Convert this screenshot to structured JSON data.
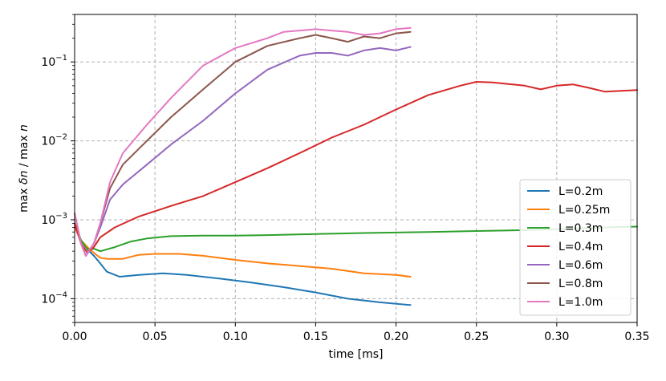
{
  "chart_data": {
    "type": "line",
    "xlabel": "time [ms]",
    "ylabel_parts": [
      "max ",
      "δn",
      " / max ",
      "n"
    ],
    "xlim": [
      0,
      0.35
    ],
    "ylim": [
      5e-05,
      0.4
    ],
    "yscale": "log",
    "grid": true,
    "legend_position": "lower-right",
    "x_ticks": [
      0.0,
      0.05,
      0.1,
      0.15,
      0.2,
      0.25,
      0.3,
      0.35
    ],
    "x_tick_labels": [
      "0.00",
      "0.05",
      "0.10",
      "0.15",
      "0.20",
      "0.25",
      "0.30",
      "0.35"
    ],
    "y_ticks": [
      0.0001,
      0.001,
      0.01,
      0.1
    ],
    "y_tick_labels": [
      {
        "base": "10",
        "exp": "−4"
      },
      {
        "base": "10",
        "exp": "−3"
      },
      {
        "base": "10",
        "exp": "−2"
      },
      {
        "base": "10",
        "exp": "−1"
      }
    ],
    "series": [
      {
        "name": "L=0.2m",
        "color": "#1f77b4",
        "x": [
          0,
          0.004,
          0.008,
          0.012,
          0.016,
          0.02,
          0.028,
          0.04,
          0.055,
          0.07,
          0.09,
          0.11,
          0.13,
          0.15,
          0.17,
          0.19,
          0.209
        ],
        "y": [
          0.0008,
          0.00055,
          0.00042,
          0.00035,
          0.00028,
          0.00022,
          0.00019,
          0.0002,
          0.00021,
          0.0002,
          0.00018,
          0.00016,
          0.00014,
          0.00012,
          0.0001,
          9e-05,
          8.3e-05
        ]
      },
      {
        "name": "L=0.25m",
        "color": "#ff7f0e",
        "x": [
          0,
          0.004,
          0.008,
          0.012,
          0.016,
          0.02,
          0.03,
          0.04,
          0.05,
          0.065,
          0.08,
          0.1,
          0.12,
          0.14,
          0.16,
          0.18,
          0.2,
          0.209
        ],
        "y": [
          0.0008,
          0.00055,
          0.00045,
          0.00038,
          0.00033,
          0.00032,
          0.00032,
          0.00036,
          0.00037,
          0.00037,
          0.00035,
          0.00031,
          0.00028,
          0.00026,
          0.00024,
          0.00021,
          0.0002,
          0.00019
        ]
      },
      {
        "name": "L=0.3m",
        "color": "#2ca02c",
        "x": [
          0,
          0.004,
          0.008,
          0.012,
          0.016,
          0.025,
          0.035,
          0.045,
          0.06,
          0.08,
          0.1,
          0.12,
          0.15,
          0.18,
          0.2,
          0.22,
          0.25,
          0.28,
          0.3,
          0.33,
          0.35
        ],
        "y": [
          0.0009,
          0.00055,
          0.00042,
          0.00043,
          0.0004,
          0.00045,
          0.00053,
          0.00058,
          0.00062,
          0.00063,
          0.00063,
          0.00064,
          0.00066,
          0.00068,
          0.00069,
          0.0007,
          0.00072,
          0.00074,
          0.00076,
          0.0008,
          0.00082
        ]
      },
      {
        "name": "L=0.4m",
        "color": "#d62728",
        "x": [
          0,
          0.004,
          0.008,
          0.012,
          0.016,
          0.025,
          0.04,
          0.06,
          0.08,
          0.1,
          0.12,
          0.14,
          0.16,
          0.18,
          0.2,
          0.22,
          0.24,
          0.25,
          0.26,
          0.28,
          0.29,
          0.3,
          0.31,
          0.32,
          0.33,
          0.35
        ],
        "y": [
          0.0009,
          0.0005,
          0.00038,
          0.00045,
          0.0006,
          0.0008,
          0.0011,
          0.0015,
          0.002,
          0.003,
          0.0045,
          0.007,
          0.011,
          0.016,
          0.025,
          0.038,
          0.05,
          0.056,
          0.055,
          0.05,
          0.045,
          0.05,
          0.052,
          0.047,
          0.042,
          0.044
        ]
      },
      {
        "name": "L=0.6m",
        "color": "#9467bd",
        "x": [
          0,
          0.004,
          0.007,
          0.012,
          0.016,
          0.022,
          0.03,
          0.045,
          0.06,
          0.08,
          0.1,
          0.12,
          0.14,
          0.15,
          0.16,
          0.17,
          0.18,
          0.19,
          0.2,
          0.209
        ],
        "y": [
          0.0012,
          0.0005,
          0.00035,
          0.0005,
          0.0008,
          0.0018,
          0.0028,
          0.005,
          0.009,
          0.018,
          0.04,
          0.08,
          0.12,
          0.13,
          0.13,
          0.12,
          0.14,
          0.15,
          0.14,
          0.155
        ]
      },
      {
        "name": "L=0.8m",
        "color": "#8c564b",
        "x": [
          0,
          0.004,
          0.007,
          0.012,
          0.016,
          0.022,
          0.03,
          0.045,
          0.06,
          0.08,
          0.1,
          0.12,
          0.14,
          0.15,
          0.16,
          0.17,
          0.18,
          0.19,
          0.2,
          0.209
        ],
        "y": [
          0.0012,
          0.0005,
          0.00035,
          0.0005,
          0.0009,
          0.0025,
          0.005,
          0.01,
          0.02,
          0.045,
          0.1,
          0.16,
          0.2,
          0.22,
          0.2,
          0.18,
          0.21,
          0.2,
          0.23,
          0.24
        ]
      },
      {
        "name": "L=1.0m",
        "color": "#e377c2",
        "x": [
          0,
          0.004,
          0.007,
          0.012,
          0.016,
          0.022,
          0.03,
          0.045,
          0.06,
          0.08,
          0.1,
          0.12,
          0.13,
          0.15,
          0.16,
          0.17,
          0.18,
          0.19,
          0.2,
          0.209
        ],
        "y": [
          0.0012,
          0.0005,
          0.00035,
          0.0005,
          0.0009,
          0.003,
          0.007,
          0.016,
          0.035,
          0.09,
          0.15,
          0.2,
          0.24,
          0.26,
          0.25,
          0.24,
          0.22,
          0.23,
          0.26,
          0.27
        ]
      }
    ]
  }
}
